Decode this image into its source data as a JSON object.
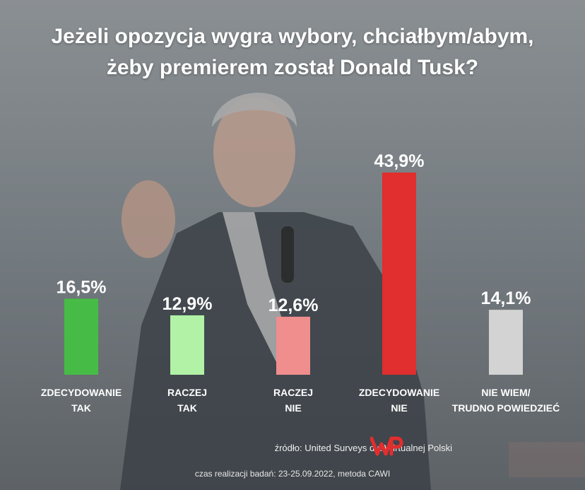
{
  "title_lines": [
    "Jeżeli opozycja wygra wybory, chciałbym/abym,",
    "żeby premierem został Donald Tusk?"
  ],
  "chart_data": {
    "type": "bar",
    "categories": [
      [
        "ZDECYDOWANIE",
        "TAK"
      ],
      [
        "RACZEJ",
        "TAK"
      ],
      [
        "RACZEJ",
        "NIE"
      ],
      [
        "ZDECYDOWANIE",
        "NIE"
      ],
      [
        "NIE WIEM/",
        "TRUDNO POWIEDZIEĆ"
      ]
    ],
    "values": [
      16.5,
      12.9,
      12.6,
      43.9,
      14.1
    ],
    "value_labels": [
      "16,5%",
      "12,9%",
      "12,6%",
      "43,9%",
      "14,1%"
    ],
    "colors": [
      "#46bc46",
      "#b2f2a6",
      "#f08e8e",
      "#e12e2e",
      "#d3d3d3"
    ],
    "ylim": [
      0,
      43.9
    ],
    "grid": false,
    "legend": "none"
  },
  "source_text": "źródło: United Surveys dla Wirtualnej Polski",
  "logo_name": "wp-logo-icon",
  "meta_text": "czas realizacji badań: 23-25.09.2022, metoda CAWI"
}
